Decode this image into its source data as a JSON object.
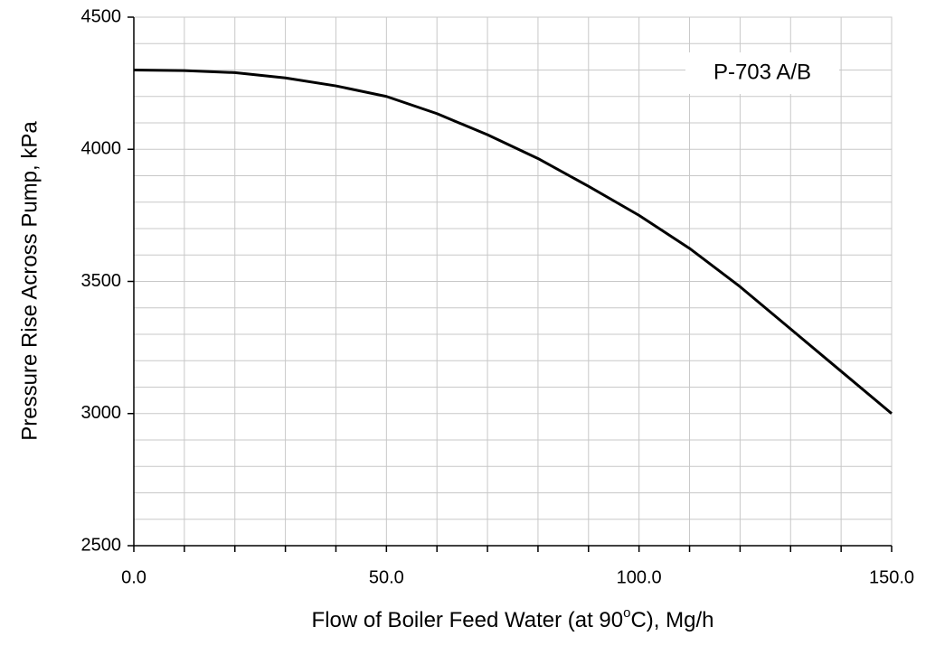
{
  "chart_data": {
    "type": "line",
    "xlabel": [
      "Flow of Boiler Feed Water (at 90",
      "o",
      "C), Mg/h"
    ],
    "ylabel": "Pressure Rise Across Pump, kPa",
    "annotation": "P-703 A/B",
    "x": [
      0,
      10,
      20,
      30,
      40,
      50,
      60,
      70,
      80,
      90,
      100,
      110,
      120,
      130,
      140,
      150
    ],
    "series": [
      {
        "color": "#000000",
        "values": [
          4300,
          4298,
          4290,
          4270,
          4240,
          4200,
          4135,
          4055,
          3965,
          3860,
          3750,
          3625,
          3480,
          3320,
          3160,
          3000
        ]
      }
    ],
    "xlim": [
      0,
      150
    ],
    "xticks": [
      {
        "value": 0,
        "label": "0.0"
      },
      {
        "value": 50,
        "label": "50.0"
      },
      {
        "value": 100,
        "label": "100.0"
      },
      {
        "value": 150,
        "label": "150.0"
      }
    ],
    "xminorticks": [
      0,
      10,
      20,
      30,
      40,
      50,
      60,
      70,
      80,
      90,
      100,
      110,
      120,
      130,
      140,
      150
    ],
    "ylim": [
      2500,
      4500
    ],
    "yticks": [
      2500,
      3000,
      3500,
      4000,
      4500
    ],
    "yminorticks": [
      2600,
      2700,
      2800,
      2900,
      3100,
      3200,
      3300,
      3400,
      3600,
      3700,
      3800,
      3900,
      4100,
      4200,
      4300,
      4400
    ],
    "grid": true
  }
}
